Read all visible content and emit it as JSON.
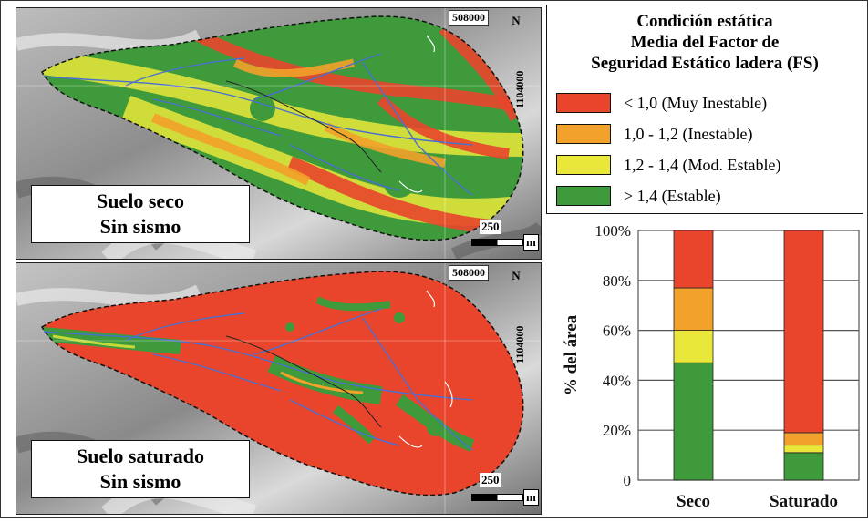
{
  "colors": {
    "very_unstable": "#e8452c",
    "unstable": "#f2a12a",
    "moderately_stable": "#e9e83a",
    "stable": "#3f9a3c",
    "stream": "#4a6fd0"
  },
  "maps": [
    {
      "label_line1": "Suelo seco",
      "label_line2": "Sin sismo",
      "coord_x": "508000",
      "coord_y": "1104000",
      "north": "N",
      "scale_value": "250",
      "scale_unit": "m"
    },
    {
      "label_line1": "Suelo saturado",
      "label_line2": "Sin sismo",
      "coord_x": "508000",
      "coord_y": "1104000",
      "north": "N",
      "scale_value": "250",
      "scale_unit": "m"
    }
  ],
  "legend": {
    "title_line1": "Condición estática",
    "title_line2": "Media del Factor de",
    "title_line3": "Seguridad Estático ladera (FS)",
    "items": [
      {
        "label": "< 1,0 (Muy Inestable)",
        "color": "#e8452c"
      },
      {
        "label": "1,0 - 1,2 (Inestable)",
        "color": "#f2a12a"
      },
      {
        "label": "1,2 - 1,4 (Mod. Estable)",
        "color": "#e9e83a"
      },
      {
        "label": "> 1,4 (Estable)",
        "color": "#3f9a3c"
      }
    ]
  },
  "chart_data": {
    "type": "bar",
    "stacked": true,
    "categories": [
      "Seco",
      "Saturado"
    ],
    "ylabel": "% del área",
    "ylim": [
      0,
      100
    ],
    "yticks": [
      "0",
      "20%",
      "40%",
      "60%",
      "80%",
      "100%"
    ],
    "grid": true,
    "series": [
      {
        "values": [
          47,
          11
        ],
        "color": "#3f9a3c"
      },
      {
        "values": [
          13,
          3
        ],
        "color": "#e9e83a"
      },
      {
        "values": [
          17,
          5
        ],
        "color": "#f2a12a"
      },
      {
        "values": [
          23,
          81
        ],
        "color": "#e8452c"
      }
    ]
  }
}
